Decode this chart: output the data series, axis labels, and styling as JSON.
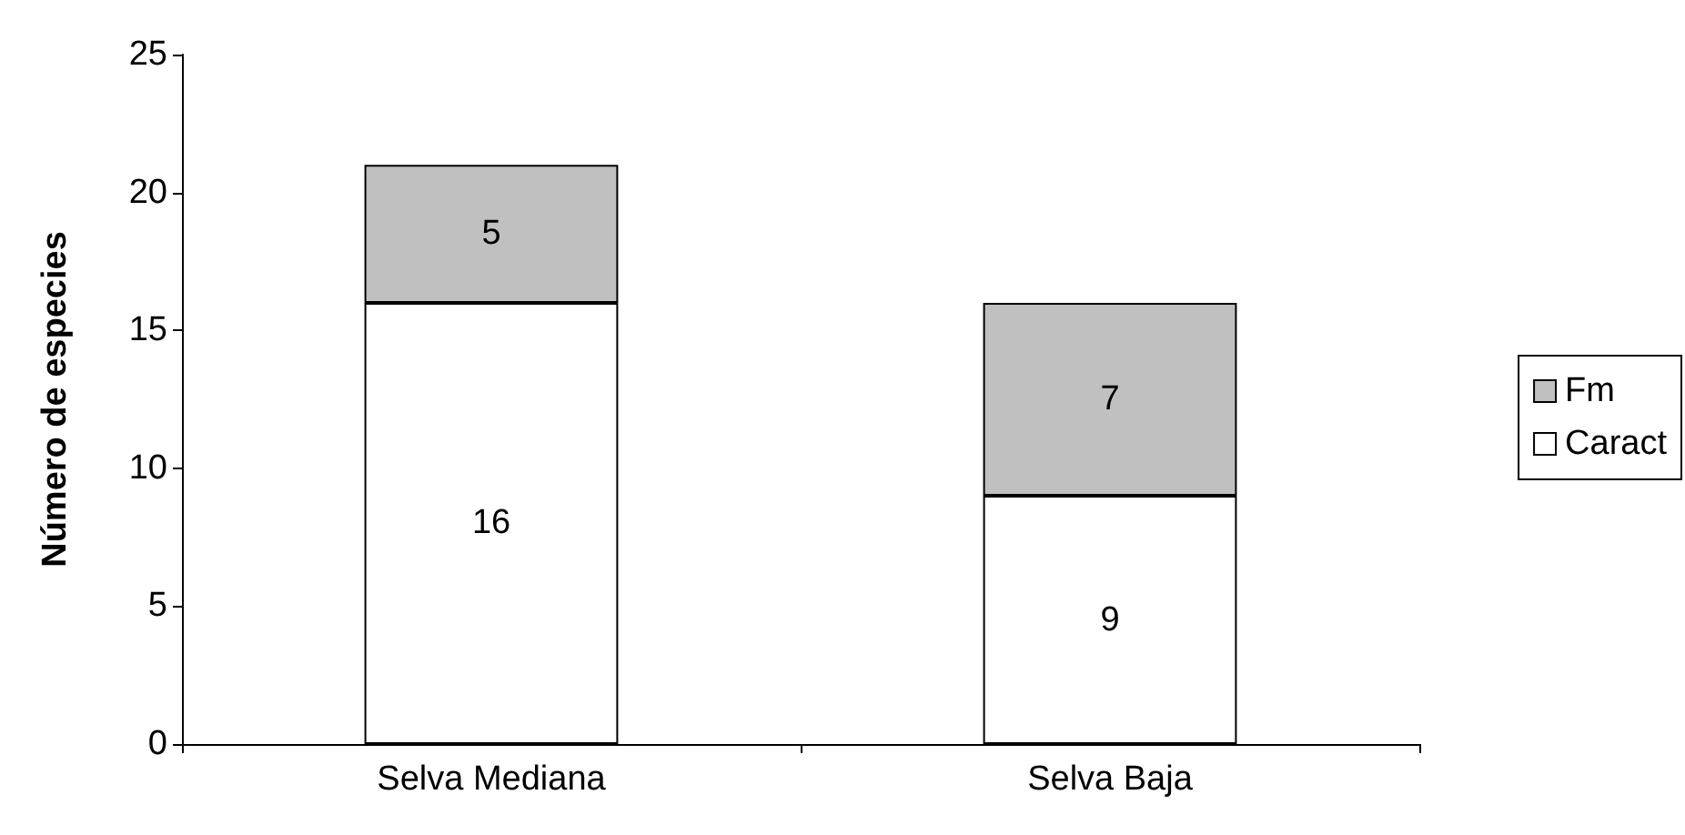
{
  "chart_data": {
    "type": "bar",
    "ylabel": "Número de especies",
    "categories": [
      "Selva Mediana",
      "Selva Baja"
    ],
    "stacked": true,
    "series": [
      {
        "name": "Caract",
        "color": "#ffffff",
        "values": [
          16,
          9
        ]
      },
      {
        "name": "Fm",
        "color": "#c0c0c0",
        "values": [
          5,
          7
        ]
      }
    ],
    "ylim": [
      0,
      25
    ],
    "yticks": [
      0,
      5,
      10,
      15,
      20,
      25
    ],
    "grid": false,
    "legend": "right",
    "data_labels": true
  }
}
